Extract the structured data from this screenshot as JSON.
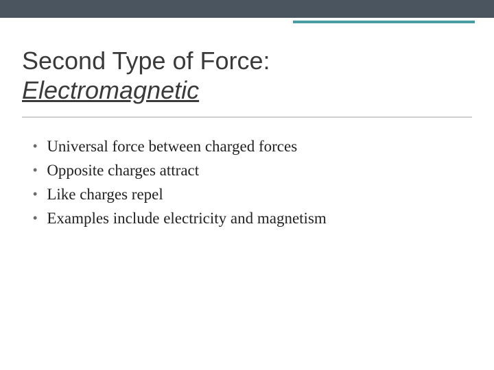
{
  "colors": {
    "top_bar": "#4a5560",
    "accent_line": "#4a9ca3",
    "divider": "#cfcfcf",
    "title_color": "#3a3a3a",
    "bullet_dot_color": "#6b6b6b",
    "bullet_text_color": "#222222",
    "background": "#ffffff"
  },
  "typography": {
    "title_font": "Trebuchet MS",
    "title_fontsize": 36,
    "body_font": "Georgia",
    "body_fontsize": 23
  },
  "title": {
    "line1": "Second Type of Force:",
    "line2": "Electromagnetic"
  },
  "bullets": [
    "Universal force between charged forces",
    "Opposite charges attract",
    "Like charges repel",
    "Examples include electricity and magnetism"
  ],
  "bullet_marker": "•"
}
